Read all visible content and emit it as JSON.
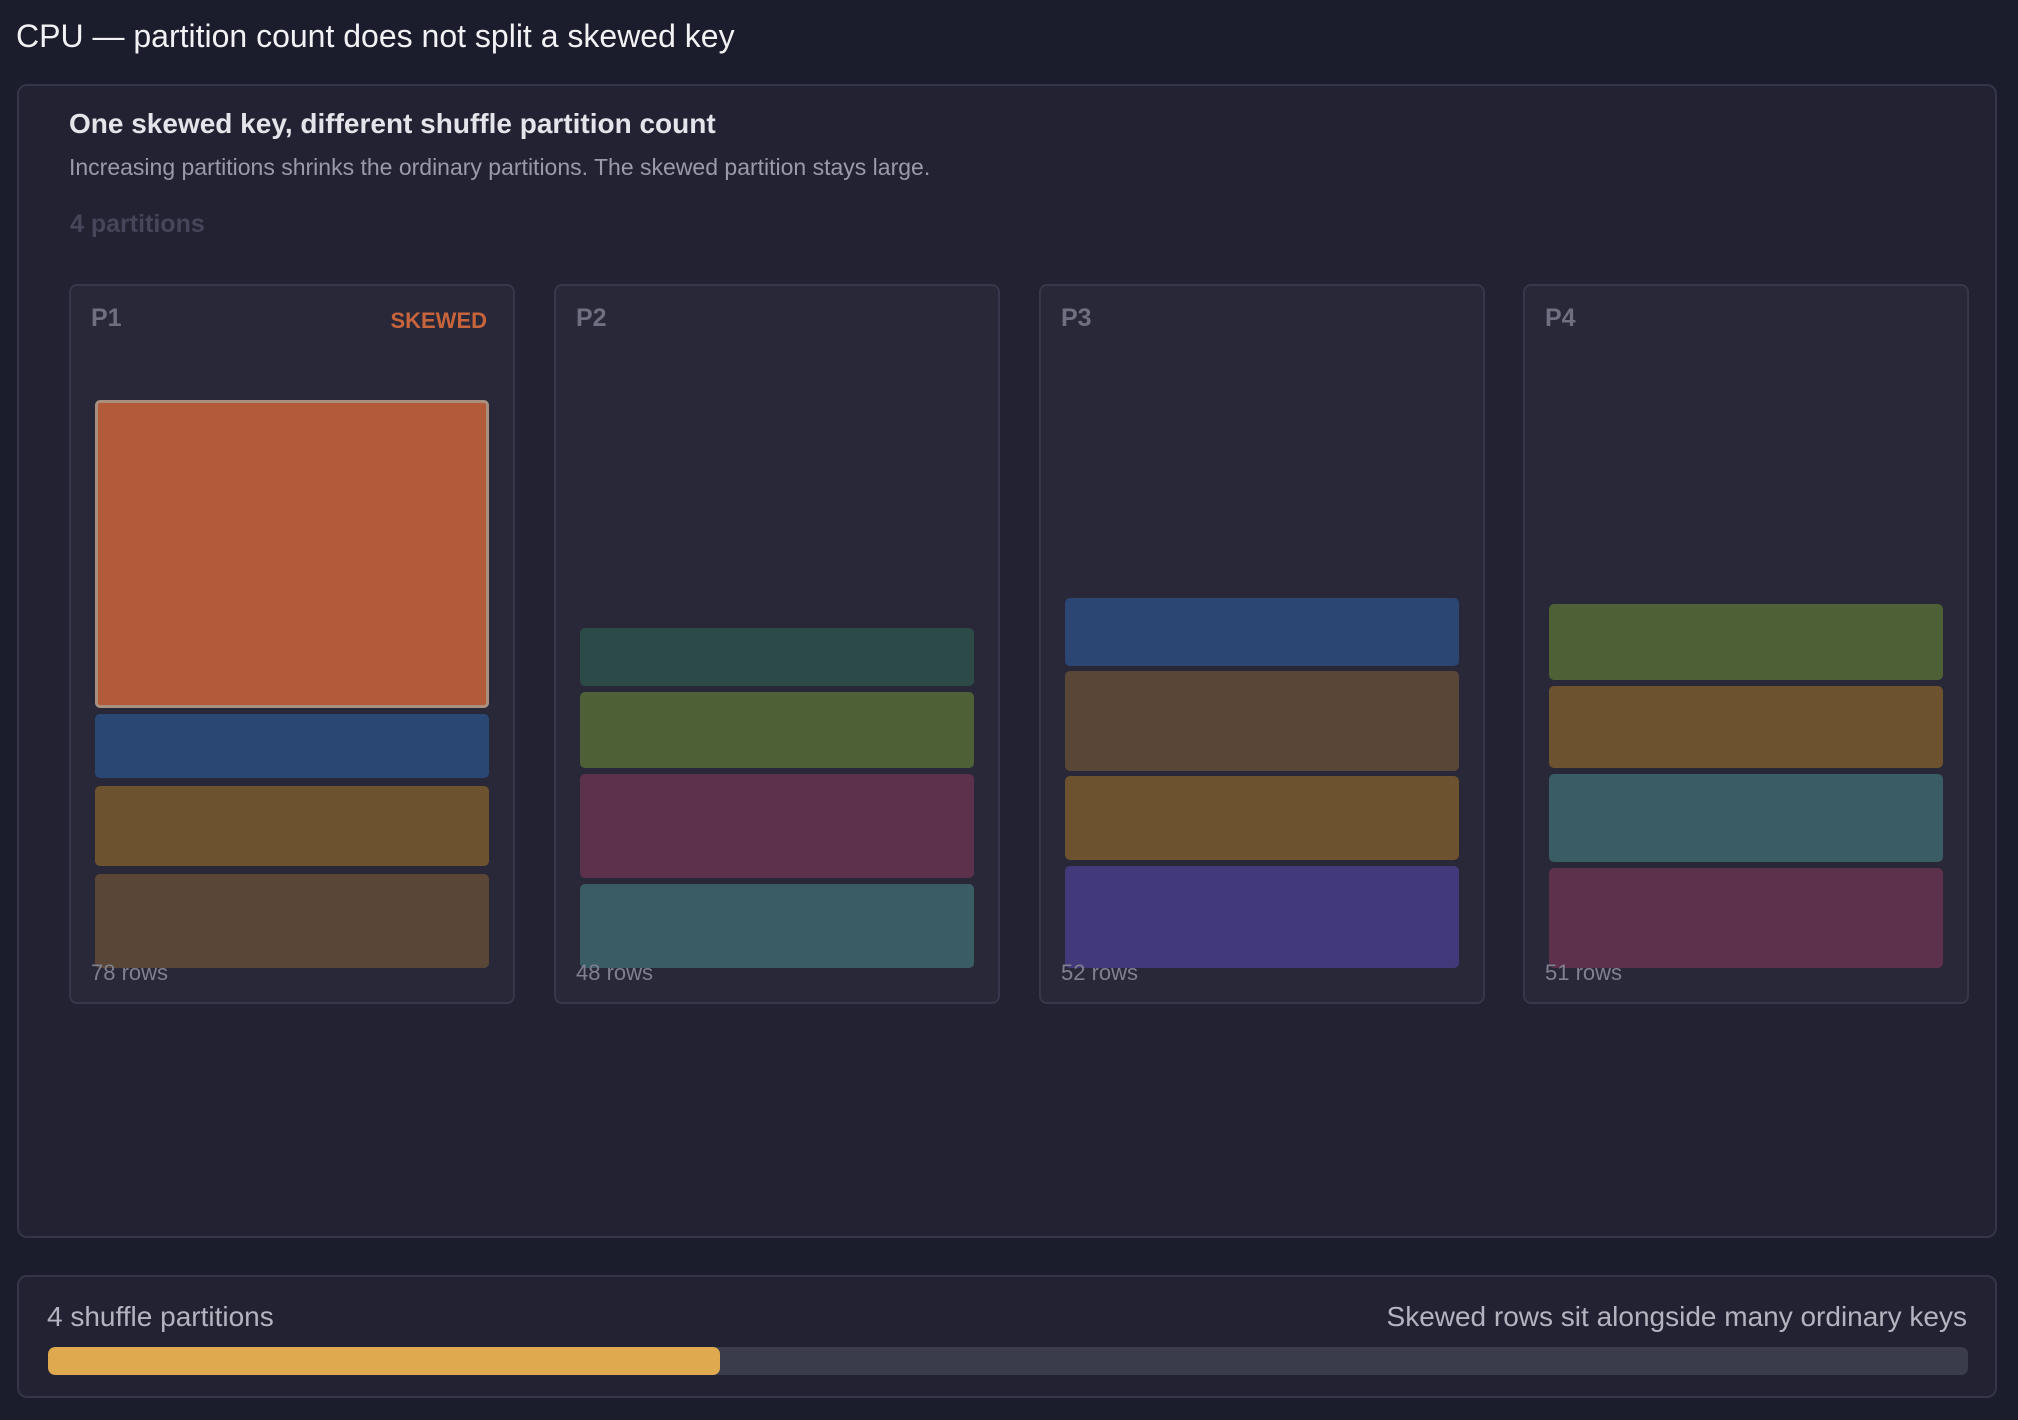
{
  "page": {
    "title": "CPU — partition count does not split a skewed key"
  },
  "panel": {
    "title": "One skewed key, different shuffle partition count",
    "subtitle": "Increasing partitions shrinks the ordinary partitions. The skewed partition stays large.",
    "partition_count_label": "4 partitions"
  },
  "partitions": [
    {
      "name": "P1",
      "tag": "SKEWED",
      "rows": "78 rows",
      "blocks": [
        {
          "color": "#b35a39",
          "skewed": true
        },
        {
          "color": "#2a4672"
        },
        {
          "color": "#6d522f"
        },
        {
          "color": "#5a4637"
        }
      ]
    },
    {
      "name": "P2",
      "tag": "",
      "rows": "48 rows",
      "blocks": [
        {
          "color": "#2b4a48"
        },
        {
          "color": "#4e6136"
        },
        {
          "color": "#5d304b"
        },
        {
          "color": "#3a5c64"
        }
      ]
    },
    {
      "name": "P3",
      "tag": "",
      "rows": "52 rows",
      "blocks": [
        {
          "color": "#2b4672"
        },
        {
          "color": "#5a4637"
        },
        {
          "color": "#6d522f"
        },
        {
          "color": "#41397a"
        }
      ]
    },
    {
      "name": "P4",
      "tag": "",
      "rows": "51 rows",
      "blocks": [
        {
          "color": "#4e6136"
        },
        {
          "color": "#6d522f"
        },
        {
          "color": "#3a5c64"
        },
        {
          "color": "#5d304b"
        }
      ]
    }
  ],
  "progress": {
    "left_label": "4 shuffle partitions",
    "right_label": "Skewed rows sit alongside many ordinary keys",
    "fill_fraction": 0.35,
    "fill_color": "#dea94f"
  }
}
